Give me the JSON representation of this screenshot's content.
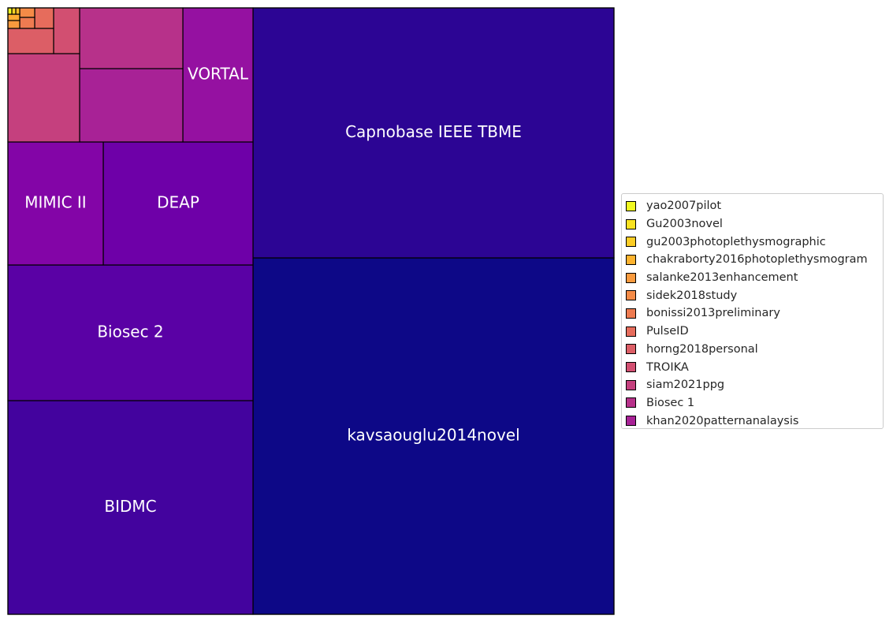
{
  "chart_data": {
    "type": "treemap",
    "title": "",
    "colormap": "plasma",
    "items": [
      {
        "name": "kavsaouglu2014novel",
        "label": "kavsaouglu2014novel",
        "value": 206.8,
        "color": "#0d0887"
      },
      {
        "name": "Capnobase IEEE TBME",
        "label": "Capnobase IEEE TBME",
        "value": 145.1,
        "color": "#2c0594"
      },
      {
        "name": "BIDMC",
        "label": "BIDMC",
        "value": 84.4,
        "color": "#43039e"
      },
      {
        "name": "Biosec 2",
        "label": "Biosec 2",
        "value": 53.4,
        "color": "#5a01a5"
      },
      {
        "name": "DEAP",
        "label": "DEAP",
        "value": 29.5,
        "color": "#6e00a8"
      },
      {
        "name": "MIMIC II",
        "label": "MIMIC II",
        "value": 18.9,
        "color": "#8305a7"
      },
      {
        "name": "VORTAL",
        "label": "VORTAL",
        "value": 15.2,
        "color": "#9511a1"
      },
      {
        "name": "khan2020patternanalaysis",
        "label": "",
        "value": 12.2,
        "color": "#a82296"
      },
      {
        "name": "Biosec 1",
        "label": "",
        "value": 10.0,
        "color": "#b7318a"
      },
      {
        "name": "siam2021ppg",
        "label": "",
        "value": 9.2,
        "color": "#c5407e"
      },
      {
        "name": "TROIKA",
        "label": "",
        "value": 6.8,
        "color": "#d24f71"
      },
      {
        "name": "horng2018personal",
        "label": "",
        "value": 3.7,
        "color": "#dc5e66"
      },
      {
        "name": "PulseID",
        "label": "",
        "value": 3.8,
        "color": "#e66c5c"
      },
      {
        "name": "bonissi2013preliminary",
        "label": "",
        "value": 0.8,
        "color": "#ee7b51"
      },
      {
        "name": "sidek2018study",
        "label": "",
        "value": 0.58,
        "color": "#f58b47"
      },
      {
        "name": "salanke2013enhancement",
        "label": "",
        "value": 0.54,
        "color": "#f99a3e"
      },
      {
        "name": "chakraborty2016photoplethysmogram",
        "label": "",
        "value": 0.4,
        "color": "#fcac32"
      },
      {
        "name": "gu2003photoplethysmographic",
        "label": "",
        "value": 0.08,
        "color": "#fcbf28"
      },
      {
        "name": "Gu2003novel",
        "label": "",
        "value": 0.07,
        "color": "#f9d424"
      },
      {
        "name": "yao2007pilot",
        "label": "",
        "value": 0.06,
        "color": "#f0f921"
      }
    ],
    "legend": {
      "placement": "right",
      "entries": [
        {
          "label": "yao2007pilot",
          "color": "#f0f921"
        },
        {
          "label": "Gu2003novel",
          "color": "#f9e221"
        },
        {
          "label": "gu2003photoplethysmographic",
          "color": "#fccd25"
        },
        {
          "label": "chakraborty2016photoplethysmogram",
          "color": "#fdb32f"
        },
        {
          "label": "salanke2013enhancement",
          "color": "#f99a3e"
        },
        {
          "label": "sidek2018study",
          "color": "#f58b47"
        },
        {
          "label": "bonissi2013preliminary",
          "color": "#ee7b51"
        },
        {
          "label": "PulseID",
          "color": "#e66c5c"
        },
        {
          "label": "horng2018personal",
          "color": "#dc5e66"
        },
        {
          "label": "TROIKA",
          "color": "#d24f71"
        },
        {
          "label": "siam2021ppg",
          "color": "#c5407e"
        },
        {
          "label": "Biosec 1",
          "color": "#b7318a"
        },
        {
          "label": "khan2020patternanalaysis",
          "color": "#a82296"
        }
      ]
    }
  }
}
